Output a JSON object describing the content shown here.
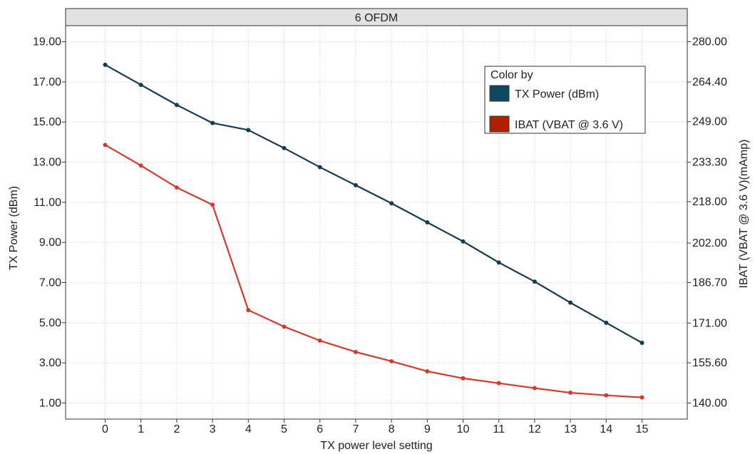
{
  "chart_data": {
    "type": "line",
    "title": "6 OFDM",
    "xlabel": "TX power level setting",
    "ylabel": "TX Power (dBm)",
    "y2label": "IBAT (VBAT @ 3.6 V)(mAmp)",
    "x": [
      0,
      1,
      2,
      3,
      4,
      5,
      6,
      7,
      8,
      9,
      10,
      11,
      12,
      13,
      14,
      15
    ],
    "x_ticks": [
      "0",
      "1",
      "2",
      "3",
      "4",
      "5",
      "6",
      "7",
      "8",
      "9",
      "10",
      "11",
      "12",
      "13",
      "14",
      "15"
    ],
    "ylim": [
      0.2,
      19.8
    ],
    "yticks": [
      "1.00",
      "3.00",
      "5.00",
      "7.00",
      "9.00",
      "11.00",
      "13.00",
      "15.00",
      "17.00",
      "19.00"
    ],
    "y2lim": [
      133.8,
      286.2
    ],
    "y2ticks": [
      "140.00",
      "155.60",
      "171.00",
      "186.70",
      "202.00",
      "218.00",
      "233.30",
      "249.00",
      "264.40",
      "280.00"
    ],
    "grid": true,
    "legend": {
      "title": "Color by",
      "position": "top-right"
    },
    "series": [
      {
        "name": "TX Power (dBm)",
        "axis": "left",
        "color": "#163a4e",
        "swatch": "#0d4a60",
        "values": [
          17.85,
          16.85,
          15.85,
          14.95,
          14.6,
          13.7,
          12.75,
          11.85,
          10.95,
          10.0,
          9.05,
          8.0,
          7.05,
          6.0,
          5.0,
          4.0
        ]
      },
      {
        "name": "IBAT (VBAT @ 3.6 V)",
        "axis": "right",
        "color": "#d43a2c",
        "swatch": "#b02000",
        "values": [
          240.0,
          232.0,
          223.5,
          216.8,
          176.0,
          169.6,
          164.2,
          159.8,
          156.2,
          152.3,
          149.6,
          147.7,
          145.8,
          144.0,
          143.0,
          142.2
        ]
      }
    ]
  }
}
